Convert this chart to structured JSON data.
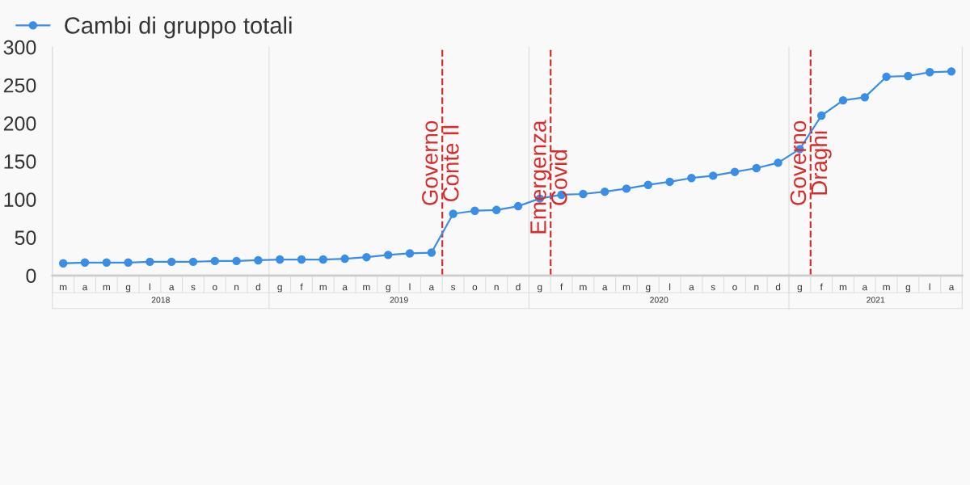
{
  "chart_data": {
    "type": "line",
    "series": [
      {
        "name": "Cambi di gruppo totali",
        "color": "#3a8ee6",
        "values": [
          16,
          17,
          17,
          17,
          18,
          18,
          18,
          19,
          19,
          20,
          21,
          21,
          21,
          22,
          24,
          27,
          29,
          30,
          81,
          85,
          86,
          91,
          101,
          106,
          107,
          110,
          114,
          119,
          123,
          128,
          131,
          136,
          141,
          148,
          166,
          210,
          230,
          234,
          261,
          262,
          267,
          268
        ]
      }
    ],
    "categories": [
      "m",
      "a",
      "m",
      "g",
      "l",
      "a",
      "s",
      "o",
      "n",
      "d",
      "g",
      "f",
      "m",
      "a",
      "m",
      "g",
      "l",
      "a",
      "s",
      "o",
      "n",
      "d",
      "g",
      "f",
      "m",
      "a",
      "m",
      "g",
      "l",
      "a",
      "s",
      "o",
      "n",
      "d",
      "g",
      "f",
      "m",
      "a",
      "m",
      "g",
      "l",
      "a"
    ],
    "ylim": [
      0,
      300
    ],
    "yticks": [
      0,
      50,
      100,
      150,
      200,
      250,
      300
    ],
    "ref_lines": [
      {
        "axis": "x",
        "label": "Governo\nConte II",
        "color": "#d62c2c",
        "line_style": "dashed"
      },
      {
        "axis": "x",
        "label": "Emergenza\nCovid",
        "color": "#d62c2c",
        "line_style": "dashed"
      },
      {
        "axis": "x",
        "label": "Governo\nDraghi",
        "color": "#d62c2c",
        "line_style": "dashed"
      }
    ],
    "annotations": [
      "2018",
      "2019",
      "2020",
      "2021"
    ],
    "marker": "circle",
    "line_style": "solid",
    "grid": false,
    "legend": "top left"
  }
}
